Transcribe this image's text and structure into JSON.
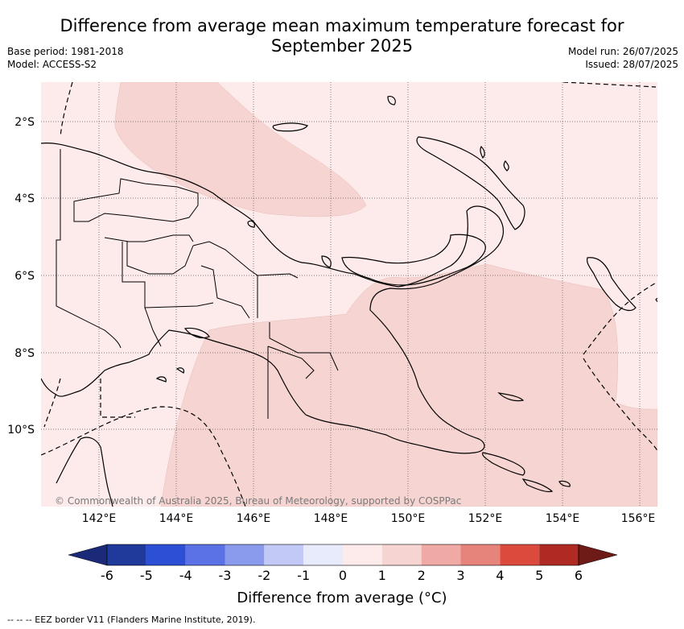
{
  "title_line1": "Difference from average mean maximum temperature forecast for",
  "title_line2": "September 2025",
  "base_period": "Base period: 1981-2018",
  "model": "Model: ACCESS-S2",
  "model_run": "Model run: 26/07/2025",
  "issued": "Issued: 28/07/2025",
  "lat_labels": [
    "2°S",
    "4°S",
    "6°S",
    "8°S",
    "10°S"
  ],
  "lon_labels": [
    "142°E",
    "144°E",
    "146°E",
    "148°E",
    "150°E",
    "152°E",
    "154°E",
    "156°E"
  ],
  "copyright": "© Commonwealth of Australia 2025, Bureau of Meteorology, supported by COSPPac",
  "colorbar": {
    "ticks": [
      "-6",
      "-5",
      "-4",
      "-3",
      "-2",
      "-1",
      "0",
      "1",
      "2",
      "3",
      "4",
      "5",
      "6"
    ],
    "colors": [
      "#1f3a9a",
      "#2c4fd6",
      "#5a72e6",
      "#8a9bee",
      "#c2c9f6",
      "#e8ebfb",
      "#fcebea",
      "#f6d4d2",
      "#efaaa5",
      "#e6837b",
      "#dc4a3d",
      "#ae2a22"
    ],
    "under_color": "#1b2a78",
    "over_color": "#6e1a16",
    "label": "Difference from average (°C)"
  },
  "legend_text": "-- -- -- EEZ border V11 (Flanders Marine Institute, 2019).",
  "colors": {
    "zone_0_1": "#fcebea",
    "zone_1_2": "#f6d4d2",
    "grid": "#555555"
  }
}
